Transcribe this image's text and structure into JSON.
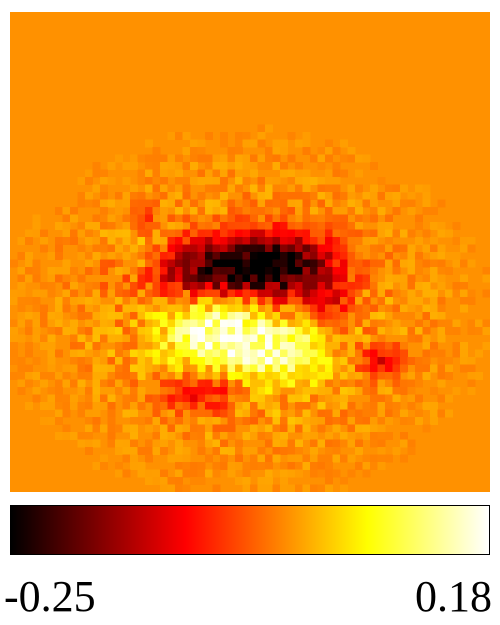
{
  "chart_data": {
    "type": "heatmap",
    "colormap": "hot",
    "vmin": -0.25,
    "vmax": 0.18,
    "background_value": 0.0,
    "grid_size": 64,
    "colorbar_labels": {
      "min": "-0.25",
      "max": "0.18"
    },
    "blobs": [
      {
        "center": [
          28,
          34
        ],
        "amplitude": -0.22,
        "sigma": [
          8,
          3
        ]
      },
      {
        "center": [
          36,
          33
        ],
        "amplitude": -0.14,
        "sigma": [
          5,
          3
        ]
      },
      {
        "center": [
          27,
          42
        ],
        "amplitude": 0.16,
        "sigma": [
          5,
          4
        ]
      },
      {
        "center": [
          36,
          45
        ],
        "amplitude": 0.12,
        "sigma": [
          4,
          3
        ]
      },
      {
        "center": [
          17,
          32
        ],
        "amplitude": 0.07,
        "sigma": [
          3,
          3
        ]
      },
      {
        "center": [
          49,
          46
        ],
        "amplitude": -0.1,
        "sigma": [
          2,
          1.5
        ]
      },
      {
        "center": [
          25,
          50
        ],
        "amplitude": -0.1,
        "sigma": [
          4,
          2
        ]
      },
      {
        "center": [
          42,
          38
        ],
        "amplitude": -0.08,
        "sigma": [
          2,
          2
        ]
      },
      {
        "center": [
          17,
          27
        ],
        "amplitude": -0.07,
        "sigma": [
          1.5,
          1.5
        ]
      }
    ]
  }
}
